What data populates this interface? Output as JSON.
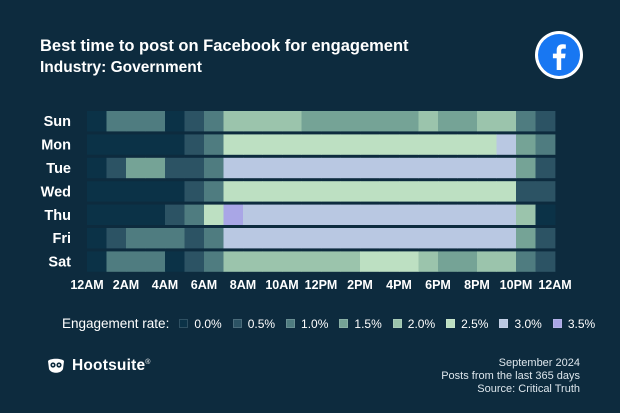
{
  "header": {
    "title": "Best time to post on Facebook for engagement",
    "subtitle": "Industry: Government"
  },
  "legend": {
    "title": "Engagement rate:",
    "items": [
      {
        "label": "0.0%",
        "color": "#0b3247"
      },
      {
        "label": "0.5%",
        "color": "#2c5364"
      },
      {
        "label": "1.0%",
        "color": "#4f7c80"
      },
      {
        "label": "1.5%",
        "color": "#75a396"
      },
      {
        "label": "2.0%",
        "color": "#9bc4ac"
      },
      {
        "label": "2.5%",
        "color": "#bde0c2"
      },
      {
        "label": "3.0%",
        "color": "#b9c8e2"
      },
      {
        "label": "3.5%",
        "color": "#a9a6e6"
      }
    ]
  },
  "chart_data": {
    "type": "heatmap",
    "title": "Best time to post on Facebook for engagement",
    "subtitle": "Industry: Government",
    "value_unit": "engagement rate (%)",
    "color_scale": [
      0.0,
      0.5,
      1.0,
      1.5,
      2.0,
      2.5,
      3.0,
      3.5
    ],
    "rows": [
      "Sun",
      "Mon",
      "Tue",
      "Wed",
      "Thu",
      "Fri",
      "Sat"
    ],
    "x_hours": [
      0,
      1,
      2,
      3,
      4,
      5,
      6,
      7,
      8,
      9,
      10,
      11,
      12,
      13,
      14,
      15,
      16,
      17,
      18,
      19,
      20,
      21,
      22,
      23
    ],
    "x_tick_labels": [
      "12AM",
      "2AM",
      "4AM",
      "6AM",
      "8AM",
      "10AM",
      "12PM",
      "2PM",
      "4PM",
      "6PM",
      "8PM",
      "10PM",
      "12AM"
    ],
    "values": [
      [
        0.0,
        1.0,
        1.0,
        1.0,
        0.0,
        0.5,
        1.0,
        2.0,
        2.0,
        2.0,
        2.0,
        1.5,
        1.5,
        1.5,
        1.5,
        1.5,
        1.5,
        2.0,
        1.5,
        1.5,
        2.0,
        2.0,
        1.0,
        0.5
      ],
      [
        0.0,
        0.0,
        0.0,
        0.0,
        0.0,
        0.5,
        1.0,
        2.5,
        2.5,
        2.5,
        2.5,
        2.5,
        2.5,
        2.5,
        2.5,
        2.5,
        2.5,
        2.5,
        2.5,
        2.5,
        2.5,
        3.0,
        1.5,
        1.0
      ],
      [
        0.0,
        0.5,
        1.5,
        1.5,
        0.5,
        0.5,
        1.0,
        3.0,
        3.0,
        3.0,
        3.0,
        3.0,
        3.0,
        3.0,
        3.0,
        3.0,
        3.0,
        3.0,
        3.0,
        3.0,
        3.0,
        3.0,
        1.5,
        0.5
      ],
      [
        0.0,
        0.0,
        0.0,
        0.0,
        0.0,
        0.5,
        1.0,
        2.5,
        2.5,
        2.5,
        2.5,
        2.5,
        2.5,
        2.5,
        2.5,
        2.5,
        2.5,
        2.5,
        2.5,
        2.5,
        2.5,
        2.5,
        0.5,
        0.5
      ],
      [
        0.0,
        0.0,
        0.0,
        0.0,
        0.5,
        1.0,
        2.5,
        3.5,
        3.0,
        3.0,
        3.0,
        3.0,
        3.0,
        3.0,
        3.0,
        3.0,
        3.0,
        3.0,
        3.0,
        3.0,
        3.0,
        3.0,
        2.0,
        0.0
      ],
      [
        0.0,
        0.5,
        1.0,
        1.0,
        1.0,
        0.5,
        1.0,
        3.0,
        3.0,
        3.0,
        3.0,
        3.0,
        3.0,
        3.0,
        3.0,
        3.0,
        3.0,
        3.0,
        3.0,
        3.0,
        3.0,
        3.0,
        1.5,
        0.5
      ],
      [
        0.0,
        1.0,
        1.0,
        1.0,
        0.0,
        0.5,
        1.0,
        2.0,
        2.0,
        2.0,
        2.0,
        2.0,
        2.0,
        2.0,
        2.5,
        2.5,
        2.5,
        2.0,
        1.5,
        1.5,
        2.0,
        2.0,
        1.0,
        0.5
      ]
    ]
  },
  "brand": {
    "name": "Hootsuite",
    "trademark": "®"
  },
  "footnote": {
    "line1": "September 2024",
    "line2": "Posts from the last 365 days",
    "line3": "Source: Critical Truth"
  },
  "colors": {
    "background": "#0d2b3e",
    "facebook_blue": "#1877f2"
  },
  "icons": {
    "social_logo": "facebook-icon",
    "brand_logo": "owl-icon"
  }
}
